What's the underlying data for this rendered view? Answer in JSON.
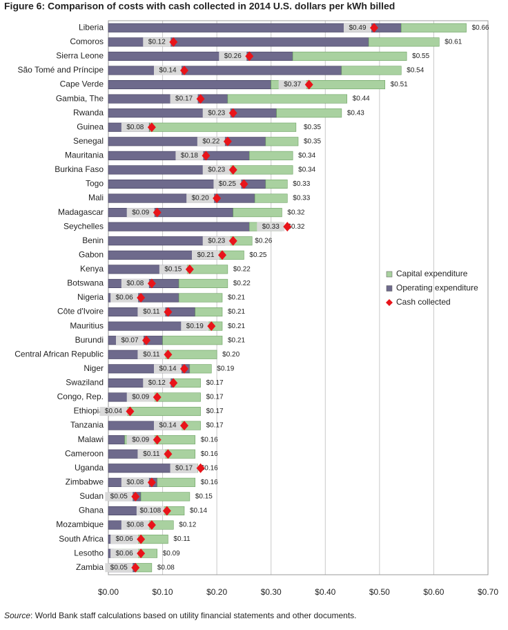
{
  "chart_data": {
    "type": "stacked_barh",
    "title": "Figure 6: Comparison of costs with cash collected in 2014 U.S. dollars per kWh billed",
    "source_label": "Source",
    "source_text": ": World Bank staff calculations based on utility financial statements and other documents.",
    "categories": [
      "Liberia",
      "Comoros",
      "Sierra Leone",
      "São Tomé and Príncipe",
      "Cape Verde",
      "Gambia, The",
      "Rwanda",
      "Guinea",
      "Senegal",
      "Mauritania",
      "Burkina Faso",
      "Togo",
      "Mali",
      "Madagascar",
      "Seychelles",
      "Benin",
      "Gabon",
      "Kenya",
      "Botswana",
      "Nigeria",
      "Côte d'Ivoire",
      "Mauritius",
      "Burundi",
      "Central African Republic",
      "Niger",
      "Swaziland",
      "Congo, Rep.",
      "Ethiopia",
      "Tanzania",
      "Malawi",
      "Cameroon",
      "Uganda",
      "Zimbabwe",
      "Sudan",
      "Ghana",
      "Mozambique",
      "South Africa",
      "Lesotho",
      "Zambia"
    ],
    "series": [
      {
        "name": "Operating expenditure",
        "color": "#6e6a8c",
        "values": [
          0.54,
          0.48,
          0.34,
          0.43,
          0.3,
          0.22,
          0.31,
          0.076,
          0.29,
          0.26,
          0.21,
          0.29,
          0.27,
          0.23,
          0.26,
          0.215,
          0.2,
          0.14,
          0.13,
          0.13,
          0.16,
          0.18,
          0.1,
          0.09,
          0.15,
          0.12,
          0.04,
          0.01,
          0.13,
          0.03,
          0.06,
          0.16,
          0.09,
          0.06,
          0.08,
          0.07,
          0.05,
          0.01,
          0.05
        ]
      },
      {
        "name": "Capital expenditure",
        "color": "#a9d1a0",
        "values": [
          0.12,
          0.13,
          0.21,
          0.11,
          0.21,
          0.22,
          0.12,
          0.27,
          0.06,
          0.08,
          0.13,
          0.04,
          0.06,
          0.09,
          0.06,
          0.05,
          0.05,
          0.08,
          0.09,
          0.08,
          0.05,
          0.03,
          0.11,
          0.11,
          0.04,
          0.05,
          0.13,
          0.16,
          0.04,
          0.13,
          0.1,
          0.005,
          0.07,
          0.09,
          0.06,
          0.05,
          0.06,
          0.08,
          0.03
        ]
      }
    ],
    "totals": [
      0.66,
      0.61,
      0.55,
      0.54,
      0.51,
      0.44,
      0.43,
      0.35,
      0.35,
      0.34,
      0.34,
      0.33,
      0.33,
      0.32,
      0.32,
      0.26,
      0.25,
      0.22,
      0.22,
      0.21,
      0.21,
      0.21,
      0.21,
      0.2,
      0.19,
      0.17,
      0.17,
      0.17,
      0.17,
      0.16,
      0.16,
      0.16,
      0.16,
      0.15,
      0.14,
      0.12,
      0.11,
      0.09,
      0.08
    ],
    "total_labels": [
      "$0.66",
      "$0.61",
      "$0.55",
      "$0.54",
      "$0.51",
      "$0.44",
      "$0.43",
      "$0.35",
      "$0.35",
      "$0.34",
      "$0.34",
      "$0.33",
      "$0.33",
      "$0.32",
      "$0.32",
      "$0.26",
      "$0.25",
      "$0.22",
      "$0.22",
      "$0.21",
      "$0.21",
      "$0.21",
      "$0.21",
      "$0.20",
      "$0.19",
      "$0.17",
      "$0.17",
      "$0.17",
      "$0.17",
      "$0.16",
      "$0.16",
      "$0.16",
      "$0.16",
      "$0.15",
      "$0.14",
      "$0.12",
      "$0.11",
      "$0.09",
      "$0.08"
    ],
    "cash": {
      "name": "Cash collected",
      "color": "#e8141a",
      "values": [
        0.49,
        0.12,
        0.26,
        0.14,
        0.37,
        0.17,
        0.23,
        0.08,
        0.22,
        0.18,
        0.23,
        0.25,
        0.2,
        0.09,
        0.33,
        0.23,
        0.21,
        0.15,
        0.08,
        0.06,
        0.11,
        0.19,
        0.07,
        0.11,
        0.14,
        0.12,
        0.09,
        0.04,
        0.14,
        0.09,
        0.11,
        0.17,
        0.08,
        0.05,
        0.108,
        0.08,
        0.06,
        0.06,
        0.05
      ],
      "value_labels": [
        "$0.49",
        "$0.12",
        "$0.26",
        "$0.14",
        "$0.37",
        "$0.17",
        "$0.23",
        "$0.08",
        "$0.22",
        "$0.18",
        "$0.23",
        "$0.25",
        "$0.20",
        "$0.09",
        "$0.33",
        "$0.23",
        "$0.21",
        "$0.15",
        "$0.08",
        "$0.06",
        "$0.11",
        "$0.19",
        "$0.07",
        "$0.11",
        "$0.14",
        "$0.12",
        "$0.09",
        "$0.04",
        "$0.14",
        "$0.09",
        "$0.11",
        "$0.17",
        "$0.08",
        "$0.05",
        "$0.108",
        "$0.08",
        "$0.06",
        "$0.06",
        "$0.05"
      ]
    },
    "xlim": [
      0,
      0.7
    ],
    "xticks": [
      {
        "value": 0,
        "label": "$0.00"
      },
      {
        "value": 0.1,
        "label": "$0.10"
      },
      {
        "value": 0.2,
        "label": "$0.20"
      },
      {
        "value": 0.3,
        "label": "$0.30"
      },
      {
        "value": 0.4,
        "label": "$0.40"
      },
      {
        "value": 0.5,
        "label": "$0.50"
      },
      {
        "value": 0.6,
        "label": "$0.60"
      },
      {
        "value": 0.7,
        "label": "$0.70"
      }
    ],
    "grid": true,
    "legend": "right"
  }
}
